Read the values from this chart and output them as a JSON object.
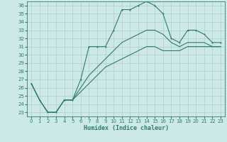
{
  "xlabel": "Humidex (Indice chaleur)",
  "xlim": [
    -0.5,
    23.5
  ],
  "ylim": [
    22.5,
    36.5
  ],
  "xticks": [
    0,
    1,
    2,
    3,
    4,
    5,
    6,
    7,
    8,
    9,
    10,
    11,
    12,
    13,
    14,
    15,
    16,
    17,
    18,
    19,
    20,
    21,
    22,
    23
  ],
  "yticks": [
    23,
    24,
    25,
    26,
    27,
    28,
    29,
    30,
    31,
    32,
    33,
    34,
    35,
    36
  ],
  "background_color": "#cde8e8",
  "grid_color": "#b0cccc",
  "line_color": "#2d7d6e",
  "main_x": [
    0,
    1,
    2,
    3,
    4,
    5,
    6,
    7,
    8,
    9,
    10,
    11,
    12,
    13,
    14,
    15,
    16,
    17,
    18,
    19,
    20,
    21,
    22,
    23
  ],
  "main_y": [
    26.5,
    24.5,
    23.0,
    23.0,
    24.5,
    24.5,
    27.0,
    31.0,
    31.0,
    31.0,
    33.0,
    35.5,
    35.5,
    36.0,
    36.5,
    36.0,
    35.0,
    32.0,
    31.5,
    33.0,
    33.0,
    32.5,
    31.5,
    31.5
  ],
  "mid_x": [
    0,
    1,
    2,
    3,
    4,
    5,
    6,
    7,
    8,
    9,
    10,
    11,
    12,
    13,
    14,
    15,
    16,
    17,
    18,
    19,
    20,
    21,
    22,
    23
  ],
  "mid_y": [
    26.5,
    24.5,
    23.0,
    23.0,
    24.5,
    24.5,
    26.0,
    27.5,
    28.5,
    29.5,
    30.5,
    31.5,
    32.0,
    32.5,
    33.0,
    33.0,
    32.5,
    31.5,
    31.0,
    31.5,
    31.5,
    31.5,
    31.0,
    31.0
  ],
  "low_x": [
    0,
    1,
    2,
    3,
    4,
    5,
    6,
    7,
    8,
    9,
    10,
    11,
    12,
    13,
    14,
    15,
    16,
    17,
    18,
    19,
    20,
    21,
    22,
    23
  ],
  "low_y": [
    26.5,
    24.5,
    23.0,
    23.0,
    24.5,
    24.5,
    25.5,
    26.5,
    27.5,
    28.5,
    29.0,
    29.5,
    30.0,
    30.5,
    31.0,
    31.0,
    30.5,
    30.5,
    30.5,
    31.0,
    31.0,
    31.0,
    31.0,
    31.0
  ],
  "lw": 0.8,
  "marker_size": 2.0,
  "tick_fontsize": 5,
  "xlabel_fontsize": 6
}
